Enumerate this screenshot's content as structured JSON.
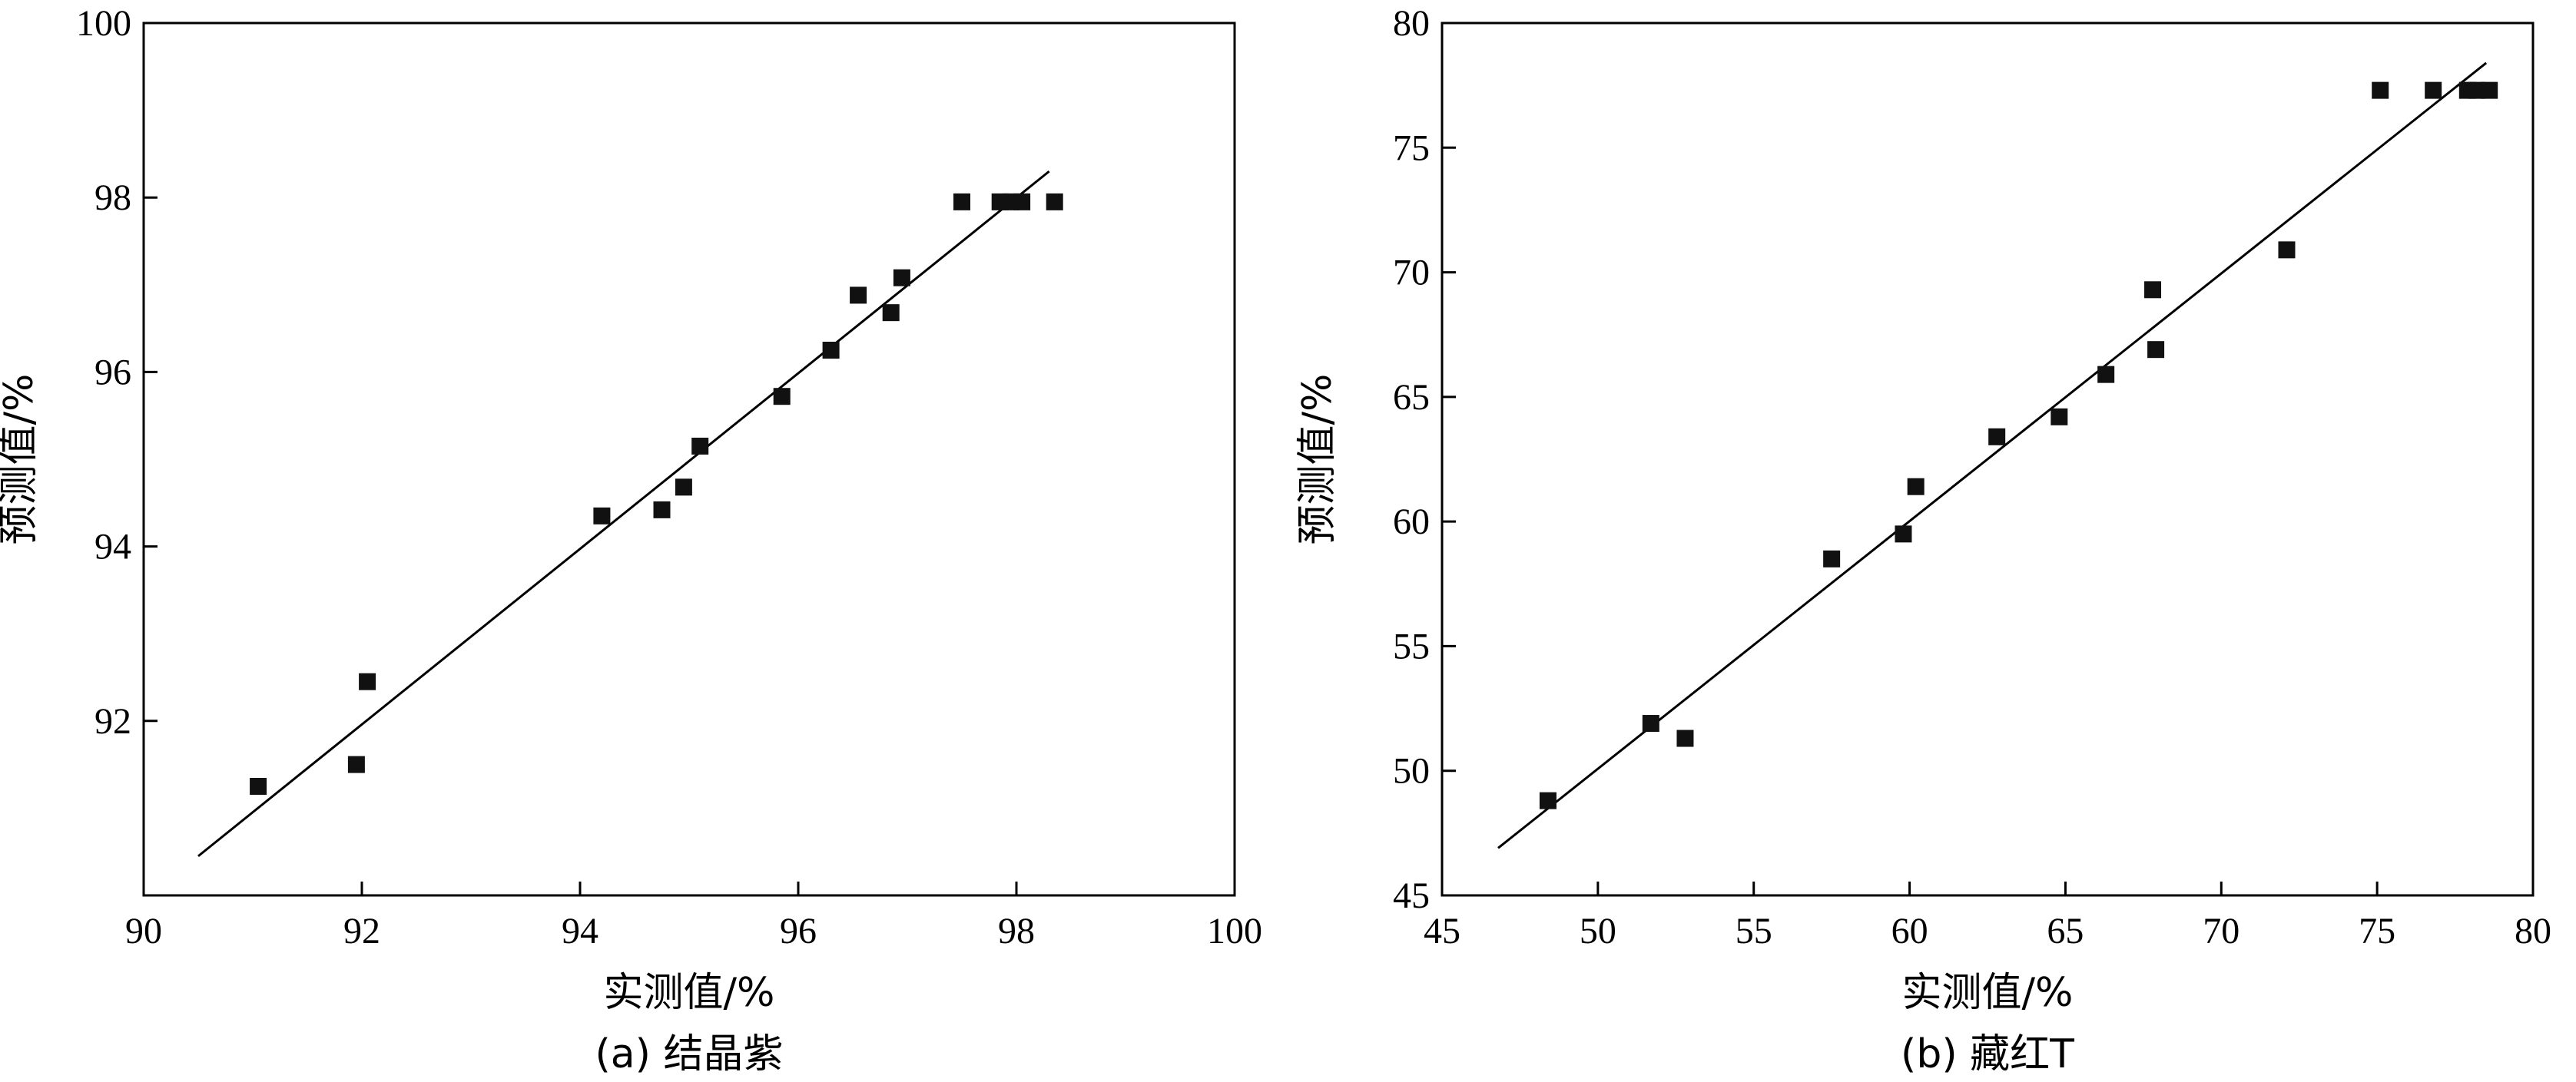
{
  "chart_data": [
    {
      "type": "scatter",
      "title": "(a) 结晶紫",
      "xlabel": "实测值/%",
      "ylabel": "预测值/%",
      "xlim": [
        90,
        100
      ],
      "ylim": [
        90,
        100
      ],
      "xticks": [
        90,
        92,
        94,
        96,
        98,
        100
      ],
      "yticks": [
        92,
        94,
        96,
        98,
        100
      ],
      "grid": false,
      "fit_line": {
        "x": [
          90.5,
          98.3
        ],
        "y": [
          90.45,
          98.3
        ]
      },
      "points": [
        {
          "x": 91.05,
          "y": 91.25
        },
        {
          "x": 91.95,
          "y": 91.5
        },
        {
          "x": 92.05,
          "y": 92.45
        },
        {
          "x": 94.2,
          "y": 94.35
        },
        {
          "x": 94.75,
          "y": 94.42
        },
        {
          "x": 94.95,
          "y": 94.68
        },
        {
          "x": 95.1,
          "y": 95.15
        },
        {
          "x": 95.85,
          "y": 95.72
        },
        {
          "x": 96.3,
          "y": 96.25
        },
        {
          "x": 96.55,
          "y": 96.88
        },
        {
          "x": 96.85,
          "y": 96.68
        },
        {
          "x": 96.95,
          "y": 97.08
        },
        {
          "x": 97.5,
          "y": 97.95
        },
        {
          "x": 97.85,
          "y": 97.95
        },
        {
          "x": 97.95,
          "y": 97.95
        },
        {
          "x": 98.05,
          "y": 97.95
        },
        {
          "x": 98.35,
          "y": 97.95
        }
      ]
    },
    {
      "type": "scatter",
      "title": "(b) 藏红T",
      "xlabel": "实测值/%",
      "ylabel": "预测值/%",
      "xlim": [
        45,
        80
      ],
      "ylim": [
        45,
        80
      ],
      "xticks": [
        45,
        50,
        55,
        60,
        65,
        70,
        75,
        80
      ],
      "yticks": [
        45,
        50,
        55,
        60,
        65,
        70,
        75,
        80
      ],
      "grid": false,
      "fit_line": {
        "x": [
          46.8,
          78.5
        ],
        "y": [
          46.9,
          78.4
        ]
      },
      "points": [
        {
          "x": 48.4,
          "y": 48.8
        },
        {
          "x": 51.7,
          "y": 51.9
        },
        {
          "x": 52.8,
          "y": 51.3
        },
        {
          "x": 57.5,
          "y": 58.5
        },
        {
          "x": 59.8,
          "y": 59.5
        },
        {
          "x": 60.2,
          "y": 61.4
        },
        {
          "x": 62.8,
          "y": 63.4
        },
        {
          "x": 64.8,
          "y": 64.2
        },
        {
          "x": 66.3,
          "y": 65.9
        },
        {
          "x": 67.8,
          "y": 69.3
        },
        {
          "x": 67.9,
          "y": 66.9
        },
        {
          "x": 72.1,
          "y": 70.9
        },
        {
          "x": 75.1,
          "y": 77.3
        },
        {
          "x": 76.8,
          "y": 77.3
        },
        {
          "x": 77.9,
          "y": 77.3
        },
        {
          "x": 78.2,
          "y": 77.3
        },
        {
          "x": 78.6,
          "y": 77.3
        }
      ]
    }
  ]
}
